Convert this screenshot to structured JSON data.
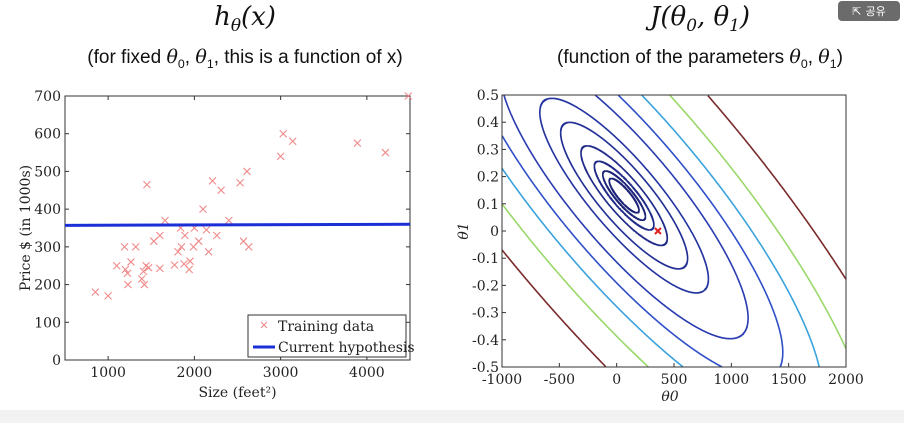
{
  "share_button": {
    "label": "공유",
    "icon": "share-icon"
  },
  "left_title": {
    "func": "h",
    "sub": "θ",
    "arg": "(x)"
  },
  "left_subtitle": {
    "pre": "(for fixed ",
    "t0": "θ",
    "s0": "0",
    ",": ", ",
    "t1": "θ",
    "s1": "1",
    "post": ", this is a function of x)"
  },
  "right_title": {
    "func": "J(θ",
    "s0": "0",
    ",": ", θ",
    "s1": "1",
    "post": ")"
  },
  "right_subtitle": {
    "pre": "(function of the parameters ",
    "t0": "θ",
    "s0": "0",
    ",": ", ",
    "t1": "θ",
    "s1": "1",
    "post": ")"
  },
  "chart_data": [
    {
      "type": "scatter",
      "xlabel": "Size (feet²)",
      "ylabel": "Price $ (in 1000s)",
      "xlim": [
        500,
        4500
      ],
      "ylim": [
        0,
        700
      ],
      "xticks": [
        1000,
        2000,
        3000,
        4000
      ],
      "yticks": [
        0,
        100,
        200,
        300,
        400,
        500,
        600,
        700
      ],
      "legend_placement": "bottom-right",
      "series": [
        {
          "name": "Training data",
          "marker": "x",
          "color": "#f08a8a",
          "points": [
            [
              852,
              180
            ],
            [
              1000,
              170
            ],
            [
              1100,
              250
            ],
            [
              1190,
              300
            ],
            [
              1200,
              240
            ],
            [
              1225,
              230
            ],
            [
              1230,
              200
            ],
            [
              1265,
              260
            ],
            [
              1320,
              300
            ],
            [
              1390,
              215
            ],
            [
              1410,
              235
            ],
            [
              1420,
              200
            ],
            [
              1440,
              250
            ],
            [
              1450,
              465
            ],
            [
              1470,
              245
            ],
            [
              1530,
              315
            ],
            [
              1600,
              330
            ],
            [
              1600,
              243
            ],
            [
              1660,
              370
            ],
            [
              1770,
              252
            ],
            [
              1810,
              287
            ],
            [
              1840,
              350
            ],
            [
              1850,
              300
            ],
            [
              1880,
              255
            ],
            [
              1890,
              330
            ],
            [
              1940,
              240
            ],
            [
              1950,
              262
            ],
            [
              1990,
              300
            ],
            [
              2000,
              350
            ],
            [
              2050,
              315
            ],
            [
              2100,
              400
            ],
            [
              2140,
              345
            ],
            [
              2165,
              287
            ],
            [
              2210,
              475
            ],
            [
              2260,
              330
            ],
            [
              2310,
              450
            ],
            [
              2400,
              370
            ],
            [
              2530,
              470
            ],
            [
              2570,
              315
            ],
            [
              2610,
              500
            ],
            [
              2630,
              300
            ],
            [
              3000,
              540
            ],
            [
              3030,
              600
            ],
            [
              3140,
              580
            ],
            [
              3890,
              575
            ],
            [
              4215,
              550
            ],
            [
              4480,
              700
            ]
          ]
        },
        {
          "name": "Current hypothesis",
          "type": "line",
          "color": "#1a2fd6",
          "points": [
            [
              500,
              357
            ],
            [
              4500,
              360
            ]
          ]
        }
      ]
    },
    {
      "type": "contour",
      "xlabel": "θ0",
      "ylabel": "θ1",
      "xlim": [
        -1000,
        2000
      ],
      "ylim": [
        -0.5,
        0.5
      ],
      "xticks": [
        -1000,
        -500,
        0,
        500,
        1000,
        1500,
        2000
      ],
      "yticks": [
        -0.5,
        -0.4,
        -0.3,
        -0.2,
        -0.1,
        0,
        0.1,
        0.2,
        0.3,
        0.4,
        0.5
      ],
      "marker": {
        "x": 360,
        "y": 0,
        "symbol": "x",
        "color": "#e02020"
      },
      "contour_colors": [
        "#1c2378",
        "#1c2378",
        "#1f2a88",
        "#1f2a88",
        "#222f95",
        "#2434a0",
        "#2a3cb0",
        "#3050c8",
        "#3aa3dd",
        "#9ad86a",
        "#7a2b2b"
      ]
    }
  ]
}
